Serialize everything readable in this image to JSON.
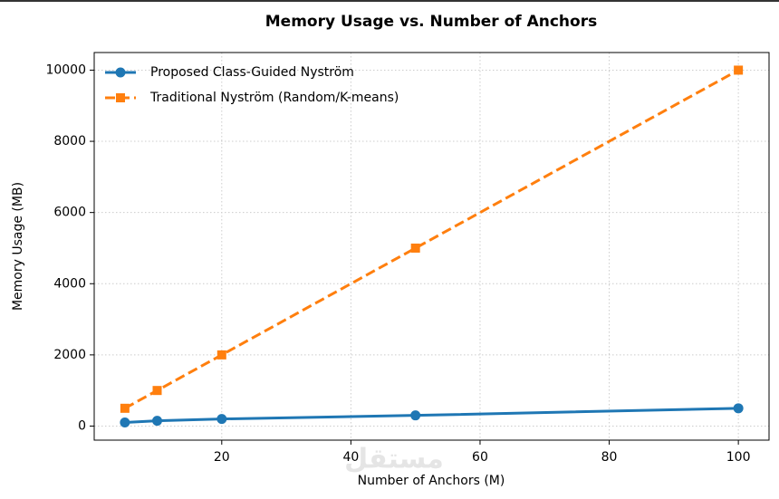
{
  "chart_data": {
    "type": "line",
    "title": "Memory Usage vs. Number of Anchors",
    "x_label": "Number of Anchors (M)",
    "y_label": "Memory Usage (MB)",
    "x": [
      5,
      10,
      20,
      50,
      100
    ],
    "series": [
      {
        "name": "Proposed Class-Guided Nyström",
        "color": "#1f77b4",
        "marker": "circle",
        "linestyle": "solid",
        "values": [
          100,
          150,
          200,
          300,
          500
        ]
      },
      {
        "name": "Traditional Nyström (Random/K-means)",
        "color": "#ff7f0e",
        "marker": "square",
        "linestyle": "dashed",
        "values": [
          500,
          1000,
          2000,
          5000,
          10000
        ]
      }
    ],
    "xlim": [
      0.25,
      104.75
    ],
    "xticks": [
      20,
      40,
      60,
      80,
      100
    ],
    "ylim": [
      -395,
      10495
    ],
    "yticks": [
      0,
      2000,
      4000,
      6000,
      8000,
      10000
    ],
    "grid": true,
    "legend": "upper-left",
    "watermark": "مستقل"
  }
}
